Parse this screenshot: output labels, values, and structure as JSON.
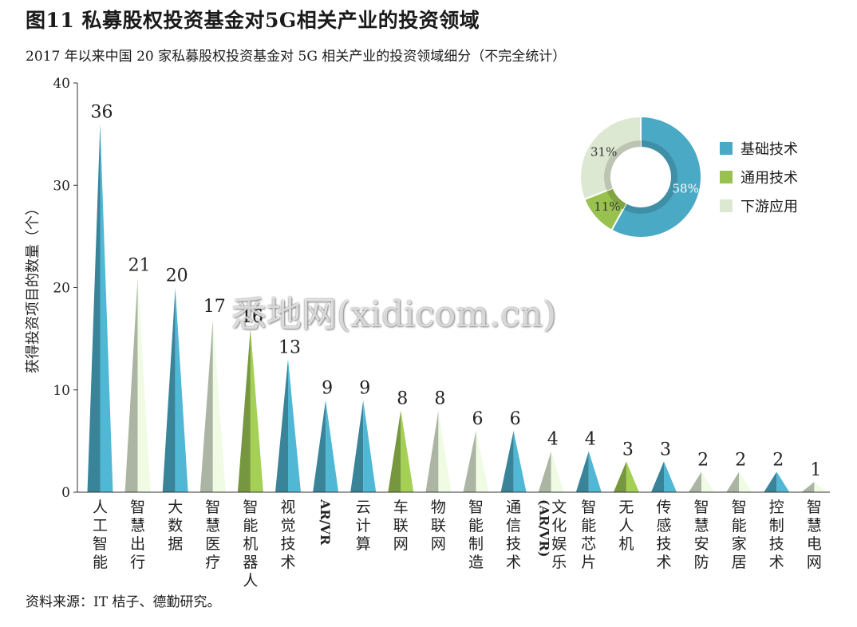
{
  "title": "图11 私募股权投资基金对5G相关产业的投资领域",
  "subtitle": "2017 年以来中国 20 家私募股权投资基金对 5G 相关产业的投资领域细分（不完全统计）",
  "source": "资料来源：IT 桔子、德勤研究。",
  "watermark": "悉地网(xidicom.cn)",
  "colors": {
    "basic": "#4aa9c5",
    "general": "#98c14f",
    "downstream": "#dde8d2"
  },
  "legend": [
    {
      "label": "基础技术",
      "group": "basic"
    },
    {
      "label": "通用技术",
      "group": "general"
    },
    {
      "label": "下游应用",
      "group": "downstream"
    }
  ],
  "chart_data": [
    {
      "type": "bar",
      "ylabel": "获得投资项目的数量（个）",
      "ylim": [
        0,
        40
      ],
      "yticks": [
        0,
        10,
        20,
        30,
        40
      ],
      "grid": false,
      "categories": [
        "人工智能",
        "智慧出行",
        "大数据",
        "智慧医疗",
        "智能机器人",
        "视觉技术",
        "AR/VR",
        "云计算",
        "车联网",
        "物联网",
        "智能制造",
        "通信技术",
        "文化娱乐(AR/VR)",
        "智能芯片",
        "无人机",
        "传感技术",
        "智慧安防",
        "智能家居",
        "控制技术",
        "智慧电网"
      ],
      "values": [
        36,
        21,
        20,
        17,
        16,
        13,
        9,
        9,
        8,
        8,
        6,
        6,
        4,
        4,
        3,
        3,
        2,
        2,
        2,
        1
      ],
      "groups": [
        "basic",
        "downstream",
        "basic",
        "downstream",
        "general",
        "basic",
        "basic",
        "basic",
        "general",
        "downstream",
        "downstream",
        "basic",
        "downstream",
        "basic",
        "general",
        "basic",
        "downstream",
        "downstream",
        "basic",
        "downstream"
      ]
    },
    {
      "type": "pie",
      "legend_position": "right",
      "categories": [
        "基础技术",
        "通用技术",
        "下游应用"
      ],
      "values": [
        58,
        11,
        31
      ],
      "labels": [
        "58%",
        "11%",
        "31%"
      ],
      "groups": [
        "basic",
        "general",
        "downstream"
      ]
    }
  ]
}
